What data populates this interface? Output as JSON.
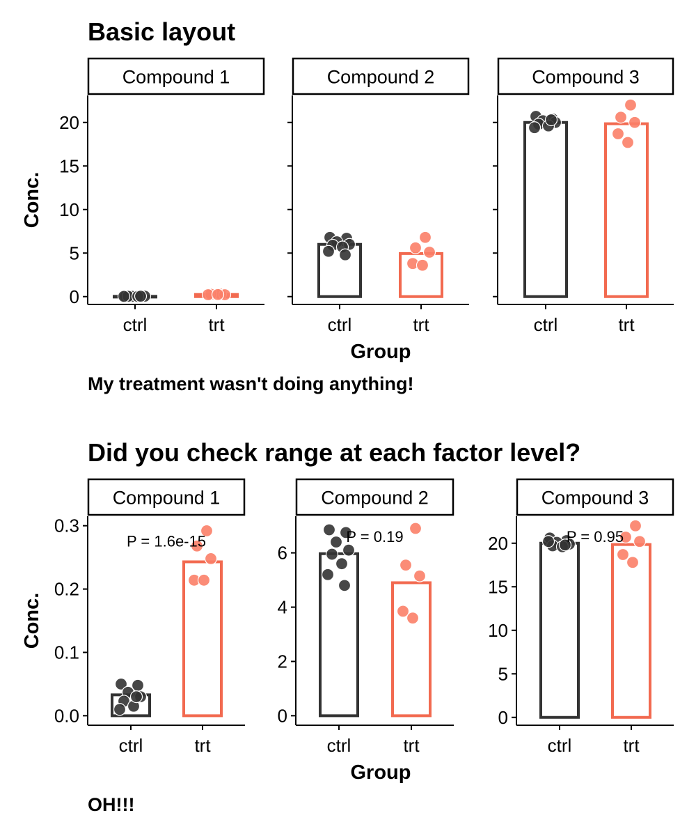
{
  "colors": {
    "ctrl": "#333333",
    "trt": "#f26a50",
    "trt_point": "#fb8068"
  },
  "chart_data": [
    {
      "type": "bar",
      "title": "Basic layout",
      "caption": "My treatment wasn't doing anything!",
      "xlabel": "Group",
      "ylabel": "Conc.",
      "shared_y": true,
      "categories": [
        "ctrl",
        "trt"
      ],
      "panels": [
        {
          "strip": "Compound 1",
          "ylim": [
            -0.9,
            23.1
          ],
          "yticks": [
            0,
            5,
            10,
            15,
            20
          ],
          "tick_labels": [
            "0",
            "5",
            "10",
            "15",
            "20"
          ],
          "bars": [
            0.03,
            0.245
          ],
          "points": {
            "ctrl": [
              0.01,
              0.02,
              0.03,
              0.05,
              0.04,
              0.02,
              0.03,
              0.05
            ],
            "trt": [
              0.29,
              0.27,
              0.22,
              0.22,
              0.24
            ]
          }
        },
        {
          "strip": "Compound 2",
          "ylim": [
            -0.9,
            23.1
          ],
          "yticks": [
            0,
            5,
            10,
            15,
            20
          ],
          "tick_labels": [
            "",
            "",
            "",
            "",
            ""
          ],
          "bars": [
            6.0,
            4.95
          ],
          "points": {
            "ctrl": [
              6.8,
              6.7,
              6.3,
              6.0,
              5.9,
              5.7,
              5.2,
              4.8
            ],
            "trt": [
              6.8,
              5.6,
              5.1,
              3.8,
              3.6
            ]
          }
        },
        {
          "strip": "Compound 3",
          "ylim": [
            -0.9,
            23.1
          ],
          "yticks": [
            0,
            5,
            10,
            15,
            20
          ],
          "tick_labels": [
            "",
            "",
            "",
            "",
            ""
          ],
          "bars": [
            20.0,
            19.85
          ],
          "points": {
            "ctrl": [
              20.7,
              20.4,
              20.2,
              20.0,
              19.8,
              19.6,
              19.4,
              20.3
            ],
            "trt": [
              22.0,
              20.6,
              20.0,
              18.7,
              17.7
            ]
          }
        }
      ]
    },
    {
      "type": "bar",
      "title": "Did you check range at each factor level?",
      "caption": "OH!!!",
      "xlabel": "Group",
      "ylabel": "Conc.",
      "shared_y": false,
      "categories": [
        "ctrl",
        "trt"
      ],
      "panels": [
        {
          "strip": "Compound 1",
          "ylim": [
            -0.015,
            0.315
          ],
          "yticks": [
            0,
            0.1,
            0.2,
            0.3
          ],
          "tick_labels": [
            "0.0",
            "0.1",
            "0.2",
            "0.3"
          ],
          "bars": [
            0.033,
            0.243
          ],
          "p_label": "P = 1.6e-15",
          "p_y": 0.276,
          "points": {
            "ctrl": [
              0.05,
              0.048,
              0.037,
              0.03,
              0.023,
              0.015,
              0.01,
              0.03
            ],
            "trt": [
              0.292,
              0.268,
              0.248,
              0.214,
              0.214
            ]
          }
        },
        {
          "strip": "Compound 2",
          "ylim": [
            -0.35,
            7.35
          ],
          "yticks": [
            0,
            2,
            4,
            6
          ],
          "tick_labels": [
            "0",
            "2",
            "4",
            "6"
          ],
          "bars": [
            5.97,
            4.9
          ],
          "p_label": "P = 0.19",
          "p_y": 6.6,
          "points": {
            "ctrl": [
              6.85,
              6.75,
              6.4,
              6.1,
              5.95,
              5.6,
              5.2,
              4.8
            ],
            "trt": [
              6.9,
              5.55,
              5.15,
              3.85,
              3.6
            ]
          }
        },
        {
          "strip": "Compound 3",
          "ylim": [
            -0.9,
            23.1
          ],
          "yticks": [
            0,
            5,
            10,
            15,
            20
          ],
          "tick_labels": [
            "0",
            "5",
            "10",
            "15",
            "20"
          ],
          "bars": [
            20.0,
            19.85
          ],
          "p_label": "P = 0.95",
          "p_y": 20.8,
          "points": {
            "ctrl": [
              20.6,
              20.3,
              20.1,
              19.9,
              19.7,
              19.6,
              20.2,
              19.8
            ],
            "trt": [
              22.0,
              20.7,
              20.2,
              18.7,
              17.8
            ]
          }
        }
      ]
    }
  ]
}
